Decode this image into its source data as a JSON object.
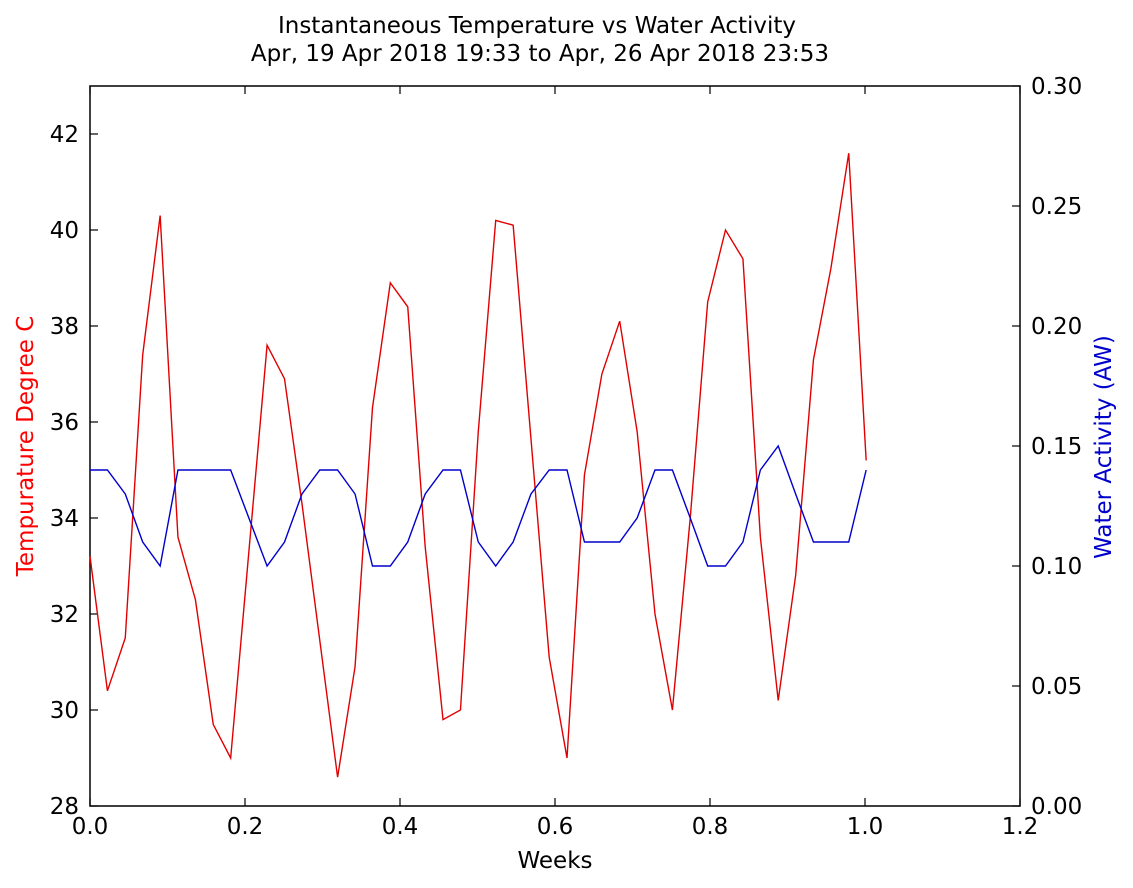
{
  "chart_data": {
    "type": "line",
    "title": "Instantaneous Temperature vs Water Activity",
    "subtitle": "Apr, 19 Apr 2018 19:33 to Apr, 26 Apr 2018 23:53",
    "xlabel": "Weeks",
    "xlim": [
      0.0,
      1.2
    ],
    "xticks": [
      "0.0",
      "0.2",
      "0.4",
      "0.6",
      "0.8",
      "1.0",
      "1.2"
    ],
    "grid": false,
    "y_left": {
      "label": "Tempurature Degree C",
      "color": "#ff0000",
      "lim": [
        28,
        43
      ],
      "ticks": [
        "28",
        "30",
        "32",
        "34",
        "36",
        "38",
        "40",
        "42"
      ]
    },
    "y_right": {
      "label": "Water Activity (AW)",
      "color": "#0000cc",
      "lim": [
        0.0,
        0.3
      ],
      "ticks": [
        "0.00",
        "0.05",
        "0.10",
        "0.15",
        "0.20",
        "0.25",
        "0.30"
      ]
    },
    "series": [
      {
        "axis": "left",
        "color": "#e00000",
        "x": [
          0.0,
          0.0225,
          0.0455,
          0.068,
          0.0905,
          0.1135,
          0.136,
          0.159,
          0.1815,
          0.2285,
          0.251,
          0.2735,
          0.3195,
          0.342,
          0.3645,
          0.3875,
          0.41,
          0.4325,
          0.4555,
          0.478,
          0.501,
          0.5235,
          0.546,
          0.5925,
          0.6155,
          0.638,
          0.6605,
          0.6835,
          0.706,
          0.729,
          0.7515,
          0.7745,
          0.797,
          0.82,
          0.8425,
          0.865,
          0.888,
          0.9105,
          0.9335,
          0.956,
          0.979,
          1.0015
        ],
        "values": [
          33.2,
          30.4,
          31.5,
          37.4,
          40.3,
          33.6,
          32.3,
          29.7,
          29.0,
          37.6,
          36.9,
          34.3,
          28.6,
          30.9,
          36.3,
          38.9,
          38.4,
          33.4,
          29.8,
          30.0,
          35.8,
          40.2,
          40.1,
          31.1,
          29.0,
          34.9,
          37.0,
          38.1,
          35.8,
          32.0,
          30.0,
          34.0,
          38.5,
          40.0,
          39.4,
          33.6,
          30.2,
          32.8,
          37.3,
          39.2,
          41.6,
          35.2
        ]
      },
      {
        "axis": "right",
        "color": "#0000cc",
        "x": [
          0.0,
          0.0225,
          0.0455,
          0.068,
          0.0905,
          0.1135,
          0.136,
          0.159,
          0.1815,
          0.2285,
          0.251,
          0.2735,
          0.2965,
          0.3195,
          0.342,
          0.3645,
          0.3875,
          0.41,
          0.4325,
          0.4555,
          0.478,
          0.501,
          0.5235,
          0.546,
          0.569,
          0.5925,
          0.6155,
          0.638,
          0.6605,
          0.6835,
          0.706,
          0.729,
          0.7515,
          0.7745,
          0.797,
          0.82,
          0.8425,
          0.865,
          0.888,
          0.9105,
          0.9335,
          0.956,
          0.979,
          1.0015
        ],
        "values": [
          0.14,
          0.14,
          0.13,
          0.11,
          0.1,
          0.14,
          0.14,
          0.14,
          0.14,
          0.1,
          0.11,
          0.13,
          0.14,
          0.14,
          0.13,
          0.1,
          0.1,
          0.11,
          0.13,
          0.14,
          0.14,
          0.11,
          0.1,
          0.11,
          0.13,
          0.14,
          0.14,
          0.11,
          0.11,
          0.11,
          0.12,
          0.14,
          0.14,
          0.12,
          0.1,
          0.1,
          0.11,
          0.14,
          0.15,
          0.13,
          0.11,
          0.11,
          0.11,
          0.14
        ]
      }
    ]
  }
}
